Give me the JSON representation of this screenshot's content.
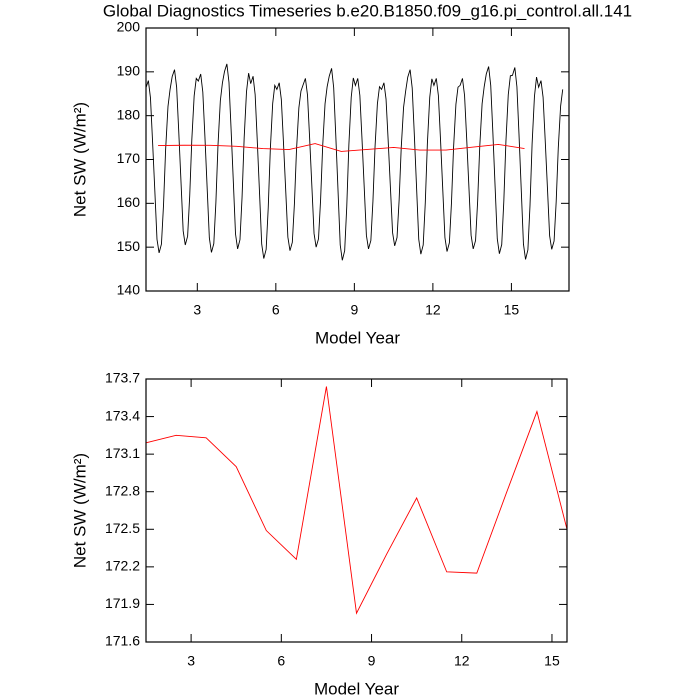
{
  "chart_data": [
    {
      "type": "line",
      "title": "Global Diagnostics Timeseries b.e20.B1850.f09_g16.pi_control.all.141",
      "xlabel": "Model Year",
      "ylabel": "Net SW (W/m²)",
      "xlim": [
        1.04,
        17.2
      ],
      "ylim": [
        140,
        200
      ],
      "xticks": [
        3,
        6,
        9,
        12,
        15
      ],
      "yticks": [
        140,
        150,
        160,
        170,
        180,
        190,
        200
      ],
      "series": [
        {
          "color": "#000000",
          "x": [
            1.04,
            1.13,
            1.21,
            1.29,
            1.38,
            1.46,
            1.54,
            1.63,
            1.71,
            1.79,
            1.88,
            1.96,
            2.04,
            2.13,
            2.21,
            2.29,
            2.38,
            2.46,
            2.54,
            2.63,
            2.71,
            2.79,
            2.88,
            2.96,
            3.04,
            3.13,
            3.21,
            3.29,
            3.38,
            3.46,
            3.54,
            3.63,
            3.71,
            3.79,
            3.88,
            3.96,
            4.04,
            4.13,
            4.21,
            4.29,
            4.38,
            4.46,
            4.54,
            4.63,
            4.71,
            4.79,
            4.88,
            4.96,
            5.04,
            5.13,
            5.21,
            5.29,
            5.38,
            5.46,
            5.54,
            5.63,
            5.71,
            5.79,
            5.88,
            5.96,
            6.04,
            6.13,
            6.21,
            6.29,
            6.38,
            6.46,
            6.54,
            6.63,
            6.71,
            6.79,
            6.88,
            6.96,
            7.04,
            7.13,
            7.21,
            7.29,
            7.38,
            7.46,
            7.54,
            7.63,
            7.71,
            7.79,
            7.88,
            7.96,
            8.04,
            8.13,
            8.21,
            8.29,
            8.38,
            8.46,
            8.54,
            8.63,
            8.71,
            8.79,
            8.88,
            8.96,
            9.04,
            9.13,
            9.21,
            9.29,
            9.38,
            9.46,
            9.54,
            9.63,
            9.71,
            9.79,
            9.88,
            9.96,
            10.04,
            10.13,
            10.21,
            10.29,
            10.38,
            10.46,
            10.54,
            10.63,
            10.71,
            10.79,
            10.88,
            10.96,
            11.04,
            11.13,
            11.21,
            11.29,
            11.38,
            11.46,
            11.54,
            11.63,
            11.71,
            11.79,
            11.88,
            11.96,
            12.04,
            12.13,
            12.21,
            12.29,
            12.38,
            12.46,
            12.54,
            12.63,
            12.71,
            12.79,
            12.88,
            12.96,
            13.04,
            13.13,
            13.21,
            13.29,
            13.38,
            13.46,
            13.54,
            13.63,
            13.71,
            13.79,
            13.88,
            13.96,
            14.04,
            14.13,
            14.21,
            14.29,
            14.38,
            14.46,
            14.54,
            14.63,
            14.71,
            14.79,
            14.88,
            14.96,
            15.04,
            15.13,
            15.21,
            15.29,
            15.38,
            15.46,
            15.54,
            15.63,
            15.71,
            15.79,
            15.88,
            15.96,
            16.04,
            16.13,
            16.21,
            16.29,
            16.38,
            16.46,
            16.54,
            16.63,
            16.71,
            16.79,
            16.88,
            16.96
          ],
          "values": [
            186.4,
            188.0,
            184.1,
            174.2,
            162.5,
            151.8,
            148.7,
            150.7,
            159.7,
            172.3,
            182.1,
            186.0,
            188.9,
            190.5,
            186.5,
            176.5,
            164.5,
            153.7,
            150.5,
            152.5,
            161.7,
            174.5,
            184.5,
            188.5,
            187.9,
            189.5,
            185.4,
            175.3,
            163.0,
            152.1,
            148.8,
            150.8,
            160.2,
            173.2,
            183.4,
            187.5,
            190.1,
            191.8,
            187.6,
            177.0,
            164.4,
            153.0,
            149.6,
            151.7,
            161.4,
            174.9,
            185.5,
            189.7,
            187.3,
            189.0,
            184.8,
            174.4,
            162.0,
            150.7,
            147.4,
            149.5,
            159.0,
            172.4,
            182.8,
            186.9,
            186.0,
            187.5,
            183.7,
            174.1,
            162.6,
            152.3,
            149.2,
            151.1,
            159.9,
            172.2,
            181.8,
            185.6,
            187.0,
            188.5,
            184.7,
            175.0,
            163.5,
            153.1,
            150.0,
            151.9,
            160.8,
            173.1,
            182.7,
            186.6,
            189.0,
            190.8,
            186.4,
            175.5,
            162.3,
            150.5,
            147.0,
            149.2,
            159.3,
            173.3,
            184.2,
            188.6,
            186.9,
            188.5,
            184.6,
            174.9,
            163.2,
            152.7,
            149.6,
            151.5,
            160.5,
            172.9,
            182.7,
            186.6,
            186.0,
            187.5,
            183.8,
            174.5,
            163.3,
            153.3,
            150.3,
            152.2,
            160.7,
            172.6,
            181.9,
            185.6,
            188.8,
            190.5,
            186.3,
            175.8,
            163.1,
            151.8,
            148.4,
            150.5,
            160.2,
            173.7,
            184.2,
            188.4,
            186.9,
            188.5,
            184.6,
            174.7,
            162.8,
            152.2,
            149.0,
            151.0,
            160.1,
            172.7,
            182.6,
            186.5,
            186.9,
            188.5,
            184.6,
            174.9,
            163.2,
            152.7,
            149.6,
            151.5,
            160.5,
            172.9,
            182.7,
            186.6,
            189.5,
            191.2,
            186.9,
            176.3,
            163.4,
            151.9,
            148.5,
            150.6,
            160.5,
            174.1,
            184.8,
            189.1,
            189.2,
            191.0,
            186.6,
            175.7,
            162.5,
            150.7,
            147.2,
            149.4,
            159.5,
            173.5,
            184.4,
            188.8,
            186.5,
            188.0,
            184.2,
            174.5,
            163.0,
            152.6,
            149.5,
            151.4,
            160.3,
            172.6,
            182.2,
            186.0
          ]
        },
        {
          "color": "#ff0000",
          "x": [
            1.5,
            2.5,
            3.5,
            4.5,
            5.5,
            6.5,
            7.5,
            8.5,
            9.5,
            10.5,
            11.5,
            12.5,
            13.5,
            14.5,
            15.5
          ],
          "values": [
            173.19,
            173.25,
            173.23,
            173.0,
            172.49,
            172.26,
            173.64,
            171.83,
            172.3,
            172.75,
            172.16,
            172.15,
            172.8,
            173.44,
            172.5
          ]
        }
      ]
    },
    {
      "type": "line",
      "xlabel": "Model Year",
      "ylabel": "Net SW (W/m²)",
      "xlim": [
        1.5,
        15.5
      ],
      "ylim": [
        171.6,
        173.7
      ],
      "xticks": [
        3,
        6,
        9,
        12,
        15
      ],
      "yticks": [
        171.6,
        171.9,
        172.2,
        172.5,
        172.8,
        173.1,
        173.4,
        173.7
      ],
      "series": [
        {
          "color": "#ff0000",
          "x": [
            1.5,
            2.5,
            3.5,
            4.5,
            5.5,
            6.5,
            7.5,
            8.5,
            9.5,
            10.5,
            11.5,
            12.5,
            13.5,
            14.5,
            15.5
          ],
          "values": [
            173.19,
            173.25,
            173.23,
            173.0,
            172.49,
            172.26,
            173.64,
            171.83,
            172.3,
            172.75,
            172.16,
            172.15,
            172.8,
            173.44,
            172.5
          ]
        }
      ]
    }
  ]
}
